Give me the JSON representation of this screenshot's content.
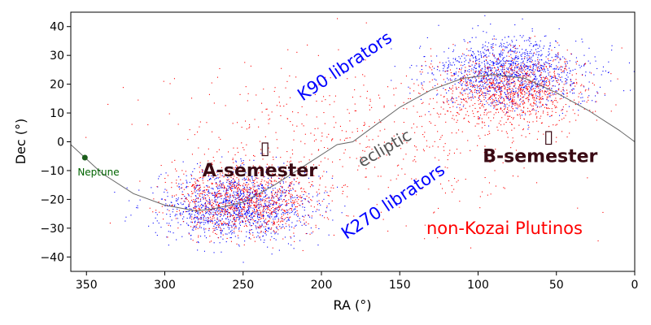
{
  "chart_data": {
    "type": "scatter",
    "title": "",
    "xlabel": "RA (°)",
    "ylabel": "Dec (°)",
    "xlim": [
      360,
      0
    ],
    "ylim": [
      -45,
      45
    ],
    "x_inverted": true,
    "x_ticks": [
      350,
      300,
      250,
      200,
      150,
      100,
      50,
      0
    ],
    "y_ticks": [
      40,
      30,
      20,
      10,
      0,
      -10,
      -20,
      -30,
      -40
    ],
    "grid": false,
    "series": [
      {
        "color": "#0000ff",
        "marker": "dot",
        "density_clouds": [
          {
            "ra_center": 255,
            "dec_center": -22,
            "ra_spread": 40,
            "dec_spread": 10,
            "share": 0.5
          },
          {
            "ra_center": 80,
            "dec_center": 24,
            "ra_spread": 40,
            "dec_spread": 10,
            "share": 0.5
          }
        ]
      },
      {
        "color": "#ff0000",
        "marker": "dot",
        "density_clouds": [
          {
            "ra_center": 250,
            "dec_center": -20,
            "ra_spread": 38,
            "dec_spread": 10,
            "share": 0.4
          },
          {
            "ra_center": 80,
            "dec_center": 18,
            "ra_spread": 40,
            "dec_spread": 10,
            "share": 0.4
          },
          {
            "ra_center": 180,
            "dec_center": 0,
            "ra_spread": 100,
            "dec_spread": 24,
            "share": 0.2
          }
        ]
      }
    ],
    "ecliptic": {
      "color": "#666666",
      "points": [
        [
          360,
          -1
        ],
        [
          340,
          -11
        ],
        [
          320,
          -18
        ],
        [
          300,
          -22
        ],
        [
          280,
          -24
        ],
        [
          270,
          -23.4
        ],
        [
          250,
          -21
        ],
        [
          230,
          -15
        ],
        [
          210,
          -8
        ],
        [
          190,
          -1
        ],
        [
          180,
          0
        ],
        [
          170,
          4
        ],
        [
          150,
          12
        ],
        [
          130,
          18
        ],
        [
          110,
          22
        ],
        [
          90,
          23.4
        ],
        [
          70,
          22
        ],
        [
          50,
          17
        ],
        [
          30,
          11
        ],
        [
          10,
          4
        ],
        [
          0,
          0
        ]
      ]
    },
    "neptune": {
      "ra": 351,
      "dec": -5.5,
      "label": "Neptune",
      "color": "#1a5c1a"
    },
    "markers": [
      {
        "symbol": "▯",
        "ra": 236,
        "dec": -2
      },
      {
        "symbol": "▯",
        "ra": 55,
        "dec": 2
      }
    ],
    "annotations": [
      {
        "text": "K90 librators",
        "ra": 212,
        "dec": 14,
        "rotation": -34,
        "style": "blue"
      },
      {
        "text": "K270 librators",
        "ra": 184,
        "dec": -34,
        "rotation": -34,
        "style": "blue"
      },
      {
        "text": "ecliptic",
        "ra": 174,
        "dec": -9,
        "rotation": -30,
        "style": "gray"
      },
      {
        "text": "A-semester",
        "ra": 276,
        "dec": -12,
        "rotation": 0,
        "style": "dark"
      },
      {
        "text": "B-semester",
        "ra": 97,
        "dec": -7,
        "rotation": 0,
        "style": "dark"
      },
      {
        "text": "non-Kozai Plutinos",
        "ra": 133,
        "dec": -32,
        "rotation": 0,
        "style": "red"
      }
    ]
  }
}
